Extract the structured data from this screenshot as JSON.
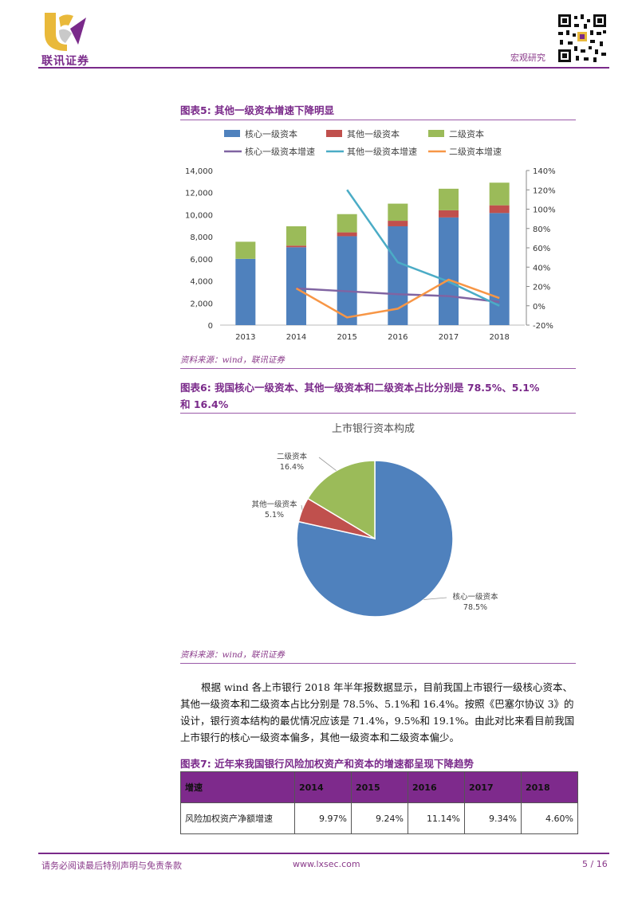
{
  "header": {
    "logo_text": "联讯证券",
    "section": "宏观研究"
  },
  "figure5": {
    "title": "图表5:   其他一级资本增速下降明显",
    "source": "资料来源：wind，联讯证券"
  },
  "figure6": {
    "title_line1": "图表6:   我国核心一级资本、其他一级资本和二级资本占比分别是 78.5%、5.1%",
    "title_line2": "和 16.4%",
    "source": "资料来源：wind，联讯证券"
  },
  "figure7": {
    "title": "图表7:   近年来我国银行风险加权资产和资本的增速都呈现下降趋势",
    "table": {
      "header": [
        "增速",
        "2014",
        "2015",
        "2016",
        "2017",
        "2018"
      ],
      "rows": [
        [
          "风险加权资产净额增速",
          "9.97%",
          "9.24%",
          "11.14%",
          "9.34%",
          "4.60%"
        ]
      ]
    }
  },
  "paragraph": {
    "line1": "根据 wind 各上市银行 2018 年半年报数据显示，目前我国上市银行一级核心资本、",
    "line2": "其他一级资本和二级资本占比分别是 78.5%、5.1%和 16.4%。按照《巴塞尔协议 3》的",
    "line3": "设计，银行资本结构的最优情况应该是 71.4%，9.5%和 19.1%。由此对比来看目前我国",
    "line4": "上市银行的核心一级资本偏多，其他一级资本和二级资本偏少。"
  },
  "footer": {
    "disclaimer": "请务必阅读最后特别声明与免责条款",
    "website": "www.lxsec.com",
    "page": "5 / 16"
  },
  "colors": {
    "core": "#4f81bd",
    "other": "#c0504d",
    "tier2": "#9bbb59",
    "core_growth": "#8064a2",
    "other_growth": "#4bacc6",
    "tier2_growth": "#f79646",
    "brand": "#7a2a8a"
  },
  "chart_data": [
    {
      "type": "bar",
      "stacked": true,
      "categories": [
        "2013",
        "2014",
        "2015",
        "2016",
        "2017",
        "2018"
      ],
      "series": [
        {
          "name": "核心一级资本",
          "values": [
            6000,
            7050,
            8050,
            8950,
            9750,
            10150
          ]
        },
        {
          "name": "其他一级资本",
          "values": [
            0,
            150,
            350,
            500,
            650,
            700
          ]
        },
        {
          "name": "二级资本",
          "values": [
            1550,
            1750,
            1650,
            1550,
            1950,
            2050
          ]
        }
      ],
      "line_series": [
        {
          "name": "核心一级资本增速",
          "values": [
            null,
            18,
            15,
            12,
            10,
            4
          ],
          "axis": "right"
        },
        {
          "name": "其他一级资本增速",
          "values": [
            null,
            null,
            120,
            45,
            25,
            0
          ],
          "axis": "right"
        },
        {
          "name": "二级资本增速",
          "values": [
            null,
            18,
            -12,
            -3,
            27,
            8
          ],
          "axis": "right"
        }
      ],
      "ylim": [
        0,
        14000
      ],
      "yticks": [
        "0",
        "2,000",
        "4,000",
        "6,000",
        "8,000",
        "10,000",
        "12,000",
        "14,000"
      ],
      "y2lim": [
        -20,
        140
      ],
      "y2ticks": [
        "-20%",
        "0%",
        "20%",
        "40%",
        "60%",
        "80%",
        "100%",
        "120%",
        "140%"
      ],
      "legend_position": "top"
    },
    {
      "type": "pie",
      "title": "上市银行资本构成",
      "labels": [
        "核心一级资本",
        "其他一级资本",
        "二级资本"
      ],
      "values": [
        78.5,
        5.1,
        16.4
      ],
      "value_labels": [
        "78.5%",
        "5.1%",
        "16.4%"
      ]
    }
  ]
}
